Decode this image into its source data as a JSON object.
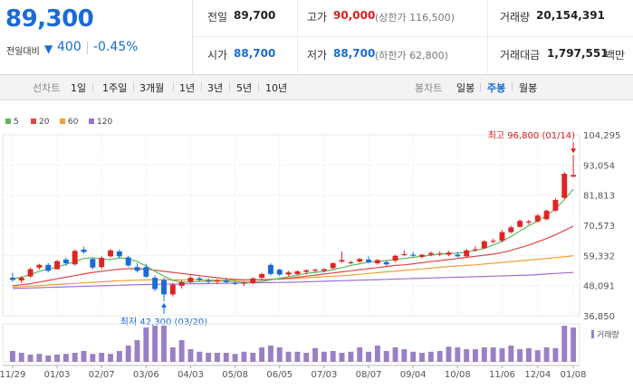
{
  "quote": {
    "price": "89,300",
    "change_label": "전일대비",
    "change_arrow": "▼",
    "change_value": "400",
    "change_pct": "-0.45%",
    "prev_close_label": "전일",
    "prev_close": "89,700",
    "high_label": "고가",
    "high": "90,000",
    "upper_limit": "(상한가 116,500)",
    "volume_label": "거래량",
    "volume": "20,154,391",
    "open_label": "시가",
    "open": "88,700",
    "low_label": "저가",
    "low": "88,700",
    "lower_limit": "(하한가 62,800)",
    "trade_value_label": "거래대금",
    "trade_value": "1,797,551",
    "trade_value_unit": "백만"
  },
  "toolbar": {
    "line_label": "선차트",
    "periods": [
      "1일",
      "1주일",
      "3개월",
      "1년",
      "3년",
      "5년",
      "10년"
    ],
    "candle_label": "봉차트",
    "candle_types": [
      "일봉",
      "주봉",
      "월봉"
    ],
    "active_candle": "주봉"
  },
  "chart_data": {
    "type": "candlestick",
    "title": "",
    "legend": [
      {
        "name": "5",
        "color": "#5cb85c"
      },
      {
        "name": "20",
        "color": "#e04747"
      },
      {
        "name": "60",
        "color": "#f0a030"
      },
      {
        "name": "120",
        "color": "#a070d0"
      }
    ],
    "y_ticks": [
      "104,295",
      "93,054",
      "81,813",
      "70,573",
      "59,332",
      "48,091",
      "36,850"
    ],
    "ylim": [
      36850,
      104295
    ],
    "x_ticks": [
      "11/29",
      "01/03",
      "02/07",
      "03/06",
      "04/03",
      "05/08",
      "06/05",
      "07/03",
      "08/07",
      "09/04",
      "10/08",
      "11/06",
      "12/04",
      "01/08"
    ],
    "high_annotation": "최고 96,800 (01/14)",
    "low_annotation": "최저 42,300 (03/20)",
    "volume_label": "거래량",
    "candles": [
      {
        "o": 51000,
        "h": 52800,
        "l": 49500,
        "c": 50200
      },
      {
        "o": 50000,
        "h": 51600,
        "l": 49000,
        "c": 51000
      },
      {
        "o": 51500,
        "h": 54800,
        "l": 51000,
        "c": 54200
      },
      {
        "o": 54800,
        "h": 56200,
        "l": 54000,
        "c": 55800
      },
      {
        "o": 55800,
        "h": 56500,
        "l": 53000,
        "c": 53600
      },
      {
        "o": 54200,
        "h": 57600,
        "l": 54000,
        "c": 57200
      },
      {
        "o": 57800,
        "h": 58600,
        "l": 55500,
        "c": 56400
      },
      {
        "o": 56000,
        "h": 61600,
        "l": 55500,
        "c": 61000
      },
      {
        "o": 61500,
        "h": 62600,
        "l": 60000,
        "c": 60600
      },
      {
        "o": 58000,
        "h": 58500,
        "l": 54000,
        "c": 54800
      },
      {
        "o": 55000,
        "h": 59000,
        "l": 54200,
        "c": 58400
      },
      {
        "o": 59000,
        "h": 61800,
        "l": 58500,
        "c": 61200
      },
      {
        "o": 60800,
        "h": 61500,
        "l": 58200,
        "c": 59000
      },
      {
        "o": 58600,
        "h": 59200,
        "l": 55000,
        "c": 55600
      },
      {
        "o": 55000,
        "h": 56500,
        "l": 53000,
        "c": 53600
      },
      {
        "o": 55000,
        "h": 56200,
        "l": 51000,
        "c": 51400
      },
      {
        "o": 51000,
        "h": 51800,
        "l": 46000,
        "c": 46800
      },
      {
        "o": 50200,
        "h": 51000,
        "l": 42300,
        "c": 44800
      },
      {
        "o": 44800,
        "h": 49000,
        "l": 44000,
        "c": 48400
      },
      {
        "o": 48000,
        "h": 50000,
        "l": 47000,
        "c": 49400
      },
      {
        "o": 49500,
        "h": 51600,
        "l": 49000,
        "c": 51000
      },
      {
        "o": 50800,
        "h": 51400,
        "l": 49600,
        "c": 50200
      },
      {
        "o": 50000,
        "h": 50800,
        "l": 49000,
        "c": 49600
      },
      {
        "o": 49600,
        "h": 50600,
        "l": 48600,
        "c": 50000
      },
      {
        "o": 50000,
        "h": 51000,
        "l": 49000,
        "c": 49400
      },
      {
        "o": 49000,
        "h": 49800,
        "l": 48400,
        "c": 48800
      },
      {
        "o": 48800,
        "h": 49600,
        "l": 48000,
        "c": 49200
      },
      {
        "o": 49000,
        "h": 51200,
        "l": 48600,
        "c": 50800
      },
      {
        "o": 51000,
        "h": 52800,
        "l": 50200,
        "c": 52400
      },
      {
        "o": 55800,
        "h": 56400,
        "l": 51800,
        "c": 52400
      },
      {
        "o": 54000,
        "h": 54400,
        "l": 51600,
        "c": 52200
      },
      {
        "o": 52200,
        "h": 53600,
        "l": 51600,
        "c": 53000
      },
      {
        "o": 52400,
        "h": 53800,
        "l": 52000,
        "c": 53400
      },
      {
        "o": 53200,
        "h": 54200,
        "l": 52200,
        "c": 53800
      },
      {
        "o": 53600,
        "h": 54400,
        "l": 53000,
        "c": 54000
      },
      {
        "o": 53600,
        "h": 54600,
        "l": 53000,
        "c": 54200
      },
      {
        "o": 54600,
        "h": 56800,
        "l": 54200,
        "c": 56400
      },
      {
        "o": 57000,
        "h": 60800,
        "l": 56600,
        "c": 57600
      },
      {
        "o": 56400,
        "h": 57400,
        "l": 56000,
        "c": 56800
      },
      {
        "o": 57000,
        "h": 58400,
        "l": 56600,
        "c": 58000
      },
      {
        "o": 57800,
        "h": 59000,
        "l": 56400,
        "c": 56800
      },
      {
        "o": 56400,
        "h": 58000,
        "l": 55800,
        "c": 57600
      },
      {
        "o": 56800,
        "h": 57600,
        "l": 55400,
        "c": 56000
      },
      {
        "o": 57400,
        "h": 59600,
        "l": 56800,
        "c": 59200
      },
      {
        "o": 59600,
        "h": 61200,
        "l": 59000,
        "c": 59800
      },
      {
        "o": 59600,
        "h": 60600,
        "l": 58800,
        "c": 59200
      },
      {
        "o": 58800,
        "h": 59800,
        "l": 58200,
        "c": 59600
      },
      {
        "o": 59600,
        "h": 60800,
        "l": 59000,
        "c": 60200
      },
      {
        "o": 59800,
        "h": 60800,
        "l": 59000,
        "c": 60000
      },
      {
        "o": 59600,
        "h": 61000,
        "l": 59000,
        "c": 60400
      },
      {
        "o": 59600,
        "h": 60600,
        "l": 58600,
        "c": 59000
      },
      {
        "o": 59000,
        "h": 61800,
        "l": 58800,
        "c": 61200
      },
      {
        "o": 61200,
        "h": 62800,
        "l": 60800,
        "c": 61600
      },
      {
        "o": 62000,
        "h": 65000,
        "l": 61600,
        "c": 64600
      },
      {
        "o": 64600,
        "h": 65600,
        "l": 63800,
        "c": 64800
      },
      {
        "o": 64800,
        "h": 68800,
        "l": 64200,
        "c": 68000
      },
      {
        "o": 68000,
        "h": 70400,
        "l": 67600,
        "c": 69800
      },
      {
        "o": 70000,
        "h": 72800,
        "l": 69600,
        "c": 72200
      },
      {
        "o": 71600,
        "h": 72600,
        "l": 70800,
        "c": 72000
      },
      {
        "o": 72000,
        "h": 74800,
        "l": 71600,
        "c": 74200
      },
      {
        "o": 72800,
        "h": 76400,
        "l": 72400,
        "c": 76000
      },
      {
        "o": 76000,
        "h": 80600,
        "l": 75600,
        "c": 80000
      },
      {
        "o": 80800,
        "h": 90400,
        "l": 80400,
        "c": 89800
      },
      {
        "o": 88700,
        "h": 96800,
        "l": 88500,
        "c": 89300
      }
    ],
    "ma5": [
      50500,
      51200,
      52200,
      53400,
      54200,
      55000,
      56000,
      57000,
      58200,
      58500,
      58000,
      57800,
      58400,
      58200,
      57000,
      55400,
      53400,
      51600,
      50000,
      49400,
      49400,
      49600,
      49800,
      49800,
      49800,
      49600,
      49400,
      49400,
      49600,
      50200,
      50800,
      51400,
      52000,
      52600,
      53000,
      53400,
      54000,
      54800,
      55600,
      56200,
      56800,
      57200,
      57400,
      57800,
      58200,
      58600,
      59000,
      59400,
      59800,
      60000,
      60200,
      60600,
      61200,
      62000,
      63200,
      64600,
      66400,
      68400,
      70400,
      72200,
      74200,
      76600,
      80200,
      84000
    ],
    "ma20": [
      48000,
      48400,
      48800,
      49400,
      50000,
      50600,
      51200,
      51800,
      52400,
      53000,
      53400,
      53800,
      54200,
      54400,
      54400,
      54200,
      53800,
      53400,
      53000,
      52600,
      52200,
      51800,
      51400,
      51000,
      50600,
      50400,
      50200,
      50200,
      50200,
      50400,
      50600,
      50800,
      51200,
      51600,
      52000,
      52400,
      52800,
      53200,
      53600,
      54000,
      54400,
      54800,
      55200,
      55600,
      55800,
      56200,
      56600,
      57000,
      57400,
      57800,
      58200,
      58600,
      59000,
      59400,
      59800,
      60400,
      61200,
      62200,
      63200,
      64400,
      65600,
      67000,
      68600,
      70200
    ],
    "ma60": [
      47500,
      47700,
      47900,
      48100,
      48300,
      48500,
      48700,
      48900,
      49100,
      49300,
      49500,
      49700,
      49900,
      50000,
      50100,
      50200,
      50200,
      50200,
      50200,
      50200,
      50200,
      50200,
      50200,
      50100,
      50100,
      50100,
      50100,
      50200,
      50300,
      50400,
      50500,
      50600,
      50800,
      51000,
      51200,
      51400,
      51600,
      51800,
      52000,
      52300,
      52600,
      52900,
      53200,
      53400,
      53700,
      54000,
      54300,
      54600,
      54900,
      55200,
      55400,
      55600,
      55800,
      56100,
      56400,
      56700,
      57000,
      57300,
      57600,
      57900,
      58200,
      58500,
      58800,
      59200
    ],
    "ma120": [
      47000,
      47100,
      47200,
      47300,
      47400,
      47500,
      47600,
      47700,
      47800,
      47900,
      48000,
      48100,
      48200,
      48300,
      48400,
      48500,
      48550,
      48600,
      48650,
      48700,
      48750,
      48800,
      48850,
      48900,
      48950,
      49000,
      49050,
      49100,
      49150,
      49200,
      49250,
      49300,
      49400,
      49500,
      49600,
      49700,
      49800,
      49900,
      50000,
      50100,
      50200,
      50300,
      50400,
      50500,
      50600,
      50700,
      50800,
      50900,
      51000,
      51100,
      51200,
      51300,
      51400,
      51500,
      51600,
      51700,
      51800,
      51900,
      52000,
      52200,
      52400,
      52600,
      52800,
      53000
    ],
    "volume": [
      30,
      25,
      20,
      22,
      18,
      20,
      22,
      25,
      30,
      22,
      25,
      22,
      30,
      45,
      60,
      95,
      100,
      100,
      40,
      60,
      35,
      28,
      25,
      25,
      25,
      22,
      28,
      25,
      40,
      45,
      40,
      28,
      28,
      25,
      38,
      28,
      30,
      25,
      28,
      40,
      28,
      45,
      30,
      40,
      35,
      28,
      25,
      28,
      30,
      42,
      40,
      35,
      35,
      40,
      40,
      38,
      45,
      35,
      38,
      32,
      40,
      38,
      100,
      95
    ]
  }
}
